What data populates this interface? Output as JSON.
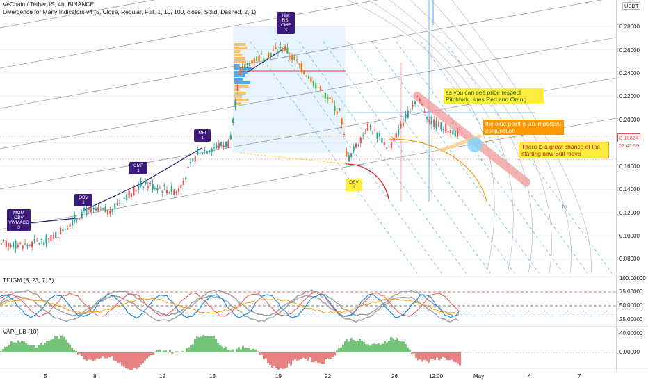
{
  "header": {
    "symbol_line": "VeChain / TetherUS, 4h, BINANCE",
    "indicator_line": "Divergence for Many Indicators v4 (5, Close, Regular, Full, 1, 10, 100, close, Solid, Dashed, 2, 1)"
  },
  "currency_badge": "USDT",
  "price_axis": {
    "ticks": [
      "0.28000",
      "0.26000",
      "0.24000",
      "0.22000",
      "0.20000",
      "0.16000",
      "0.14000",
      "0.12000",
      "0.10000",
      "0.08000"
    ],
    "current_price": "0.18624",
    "countdown": "02:43:59"
  },
  "tdigm": {
    "title": "TDIGM (8, 23, 7, 3)",
    "ticks": [
      "100.00000",
      "75.00000",
      "50.00000",
      "25.00000"
    ]
  },
  "vapi": {
    "title": "VAPI_LB (10)",
    "ticks": [
      "40.00000",
      "0.00000"
    ]
  },
  "time_axis": [
    "5",
    "8",
    "12",
    "15",
    "19",
    "22",
    "26",
    "12:00",
    "May",
    "4",
    "7"
  ],
  "divergence_flags": [
    {
      "id": "mom",
      "text": "MOM\nOBV\nVWMACD\n3"
    },
    {
      "id": "obv1",
      "text": "OBV\n1"
    },
    {
      "id": "cmf1",
      "text": "CMF\n1"
    },
    {
      "id": "mfi1",
      "text": "MFI\n1"
    },
    {
      "id": "hist",
      "text": "Hist\nRSI\nCMF\n3"
    },
    {
      "id": "obv2",
      "text": "OBV\n1"
    }
  ],
  "annotations": {
    "note1": "as you can see price respect Pitchfork Lines Red and Orang",
    "note2": "the blue point is an important conjunction",
    "note3": "There is a great chance of the starting new Bull move",
    "fan_label": "76"
  },
  "colors": {
    "up": "#26a69a",
    "down": "#ef5350",
    "candle_up_main": "#4caf50",
    "candle_down_main": "#ff6d00",
    "note_yellow": "#ffeb3b",
    "note_orange": "#ff9800",
    "flag_purple": "#3c1a7a"
  }
}
